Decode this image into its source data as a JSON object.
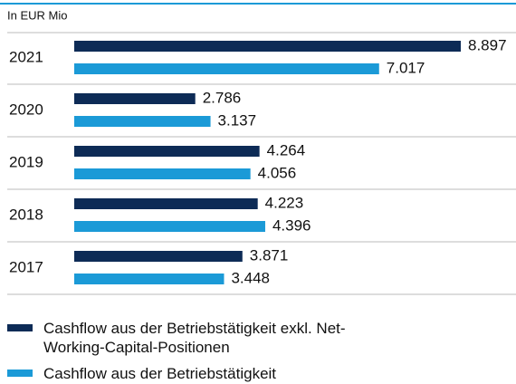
{
  "chart_data": {
    "type": "bar",
    "orientation": "horizontal",
    "subtitle": "In EUR Mio",
    "categories": [
      "2021",
      "2020",
      "2019",
      "2018",
      "2017"
    ],
    "series": [
      {
        "name": "Cashflow aus der Betriebstätigkeit exkl. Net-Working-Capital-Positionen",
        "color": "#0d2b56",
        "values": [
          8897,
          2786,
          4264,
          4223,
          3871
        ],
        "value_labels": [
          "8.897",
          "2.786",
          "4.264",
          "4.223",
          "3.871"
        ]
      },
      {
        "name": "Cashflow aus der Betriebstätigkeit",
        "color": "#1b9ad7",
        "values": [
          7017,
          3137,
          4056,
          4396,
          3448
        ],
        "value_labels": [
          "7.017",
          "3.137",
          "4.056",
          "4.396",
          "3.448"
        ]
      }
    ]
  }
}
